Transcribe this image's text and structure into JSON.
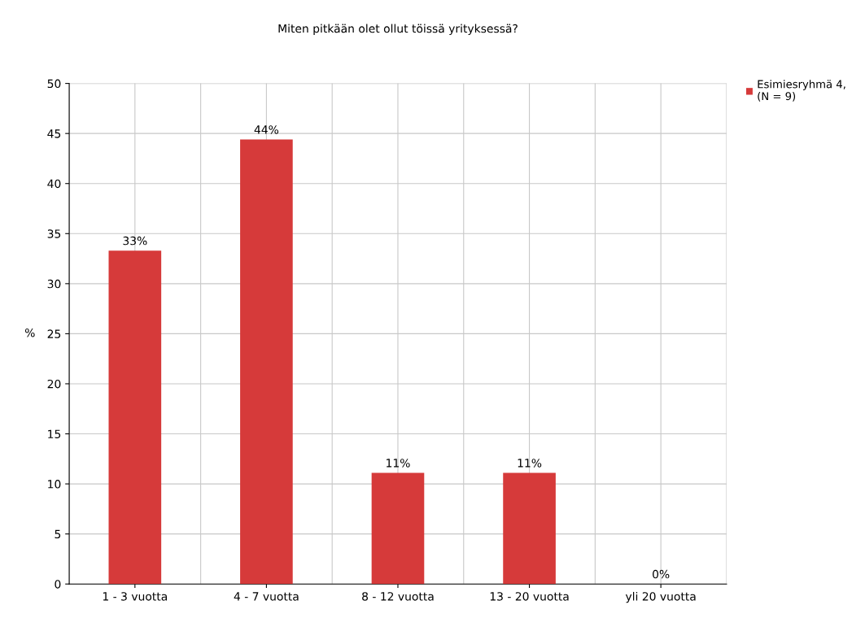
{
  "chart_data": {
    "type": "bar",
    "title": "Miten pitkään olet ollut töissä yrityksessä?",
    "ylabel": "%",
    "categories": [
      "1 - 3 vuotta",
      "4 - 7 vuotta",
      "8 - 12 vuotta",
      "13 - 20 vuotta",
      "yli 20 vuotta"
    ],
    "series": [
      {
        "name": "Esimiesryhmä 4,\n(N = 9)",
        "color": "#d63a3a",
        "values": [
          33.3,
          44.4,
          11.1,
          11.1,
          0
        ],
        "value_labels": [
          "33%",
          "44%",
          "11%",
          "11%",
          "0%"
        ]
      }
    ],
    "ylim": [
      0,
      50
    ],
    "yticks": [
      0,
      5,
      10,
      15,
      20,
      25,
      30,
      35,
      40,
      45,
      50
    ],
    "grid": true,
    "legend": "top right"
  }
}
